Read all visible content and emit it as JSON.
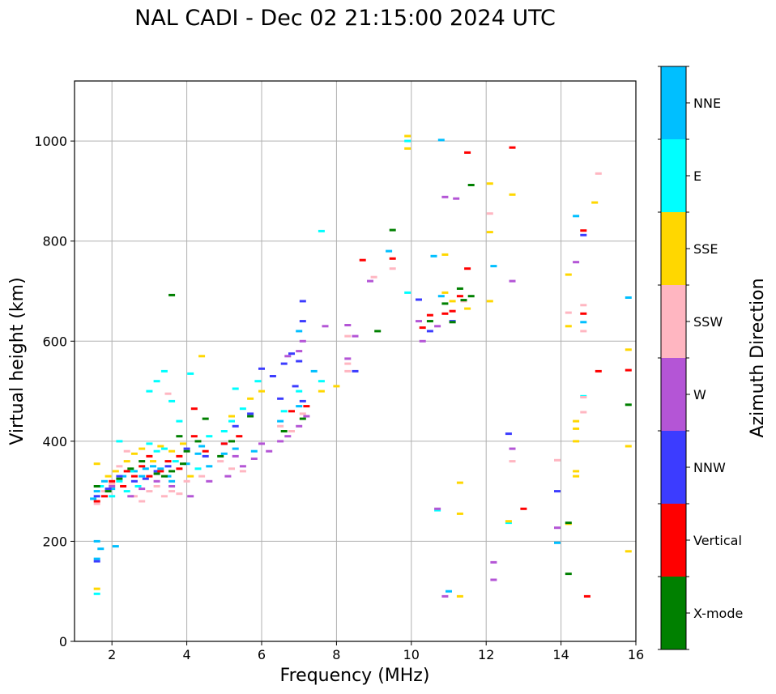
{
  "chart_data": {
    "type": "scatter",
    "title": "NAL CADI - Dec 02 21:15:00 2024 UTC",
    "xlabel": "Frequency (MHz)",
    "ylabel": "Virtual height (km)",
    "xlim": [
      1,
      16
    ],
    "ylim": [
      0,
      1120
    ],
    "xticks": [
      2,
      4,
      6,
      8,
      10,
      12,
      14,
      16
    ],
    "yticks": [
      0,
      200,
      400,
      600,
      800,
      1000
    ],
    "grid": true,
    "colorbar": {
      "label": "Azimuth Direction",
      "categories": [
        {
          "name": "X-mode",
          "color": "#008000"
        },
        {
          "name": "Vertical",
          "color": "#ff0000"
        },
        {
          "name": "NNW",
          "color": "#3c3cff"
        },
        {
          "name": "W",
          "color": "#b455d6"
        },
        {
          "name": "SSW",
          "color": "#ffb6c1"
        },
        {
          "name": "SSE",
          "color": "#ffd700"
        },
        {
          "name": "E",
          "color": "#00ffff"
        },
        {
          "name": "NNE",
          "color": "#00bfff"
        }
      ]
    },
    "series": [
      {
        "name": "NNE",
        "points": [
          [
            1.6,
            200
          ],
          [
            1.6,
            165
          ],
          [
            1.7,
            185
          ],
          [
            2.1,
            190
          ],
          [
            1.5,
            285
          ],
          [
            1.6,
            300
          ],
          [
            1.8,
            320
          ],
          [
            2.0,
            305
          ],
          [
            2.3,
            330
          ],
          [
            2.6,
            340
          ],
          [
            2.9,
            345
          ],
          [
            3.1,
            350
          ],
          [
            3.3,
            345
          ],
          [
            3.5,
            330
          ],
          [
            4.0,
            355
          ],
          [
            4.3,
            375
          ],
          [
            4.6,
            350
          ],
          [
            5.0,
            375
          ],
          [
            5.3,
            385
          ],
          [
            5.8,
            380
          ],
          [
            6.5,
            440
          ],
          [
            7.0,
            470
          ],
          [
            7.4,
            540
          ],
          [
            7.0,
            620
          ],
          [
            9.4,
            780
          ],
          [
            10.8,
            1002
          ],
          [
            10.6,
            770
          ],
          [
            10.8,
            690
          ],
          [
            12.2,
            750
          ],
          [
            14.4,
            850
          ],
          [
            14.6,
            638
          ],
          [
            15.8,
            687
          ],
          [
            13.9,
            197
          ],
          [
            11.0,
            100
          ],
          [
            2.8,
            330
          ],
          [
            3.6,
            320
          ],
          [
            4.4,
            390
          ]
        ]
      },
      {
        "name": "E",
        "points": [
          [
            1.6,
            95
          ],
          [
            1.7,
            310
          ],
          [
            2.0,
            290
          ],
          [
            2.2,
            320
          ],
          [
            2.4,
            300
          ],
          [
            2.5,
            340
          ],
          [
            2.7,
            310
          ],
          [
            3.0,
            395
          ],
          [
            3.2,
            380
          ],
          [
            3.4,
            385
          ],
          [
            3.7,
            360
          ],
          [
            4.3,
            345
          ],
          [
            4.6,
            410
          ],
          [
            5.0,
            420
          ],
          [
            5.2,
            440
          ],
          [
            5.5,
            465
          ],
          [
            5.9,
            520
          ],
          [
            6.6,
            460
          ],
          [
            7.0,
            500
          ],
          [
            7.6,
            520
          ],
          [
            3.0,
            500
          ],
          [
            3.2,
            520
          ],
          [
            3.4,
            540
          ],
          [
            3.6,
            480
          ],
          [
            4.1,
            535
          ],
          [
            5.3,
            505
          ],
          [
            7.6,
            820
          ],
          [
            9.9,
            697
          ],
          [
            10.7,
            262
          ],
          [
            12.6,
            237
          ],
          [
            14.6,
            490
          ],
          [
            9.9,
            1000
          ],
          [
            2.2,
            400
          ],
          [
            3.8,
            440
          ]
        ]
      },
      {
        "name": "SSE",
        "points": [
          [
            1.6,
            105
          ],
          [
            1.6,
            355
          ],
          [
            1.9,
            330
          ],
          [
            2.1,
            340
          ],
          [
            2.4,
            360
          ],
          [
            2.6,
            375
          ],
          [
            2.8,
            385
          ],
          [
            3.1,
            360
          ],
          [
            3.3,
            390
          ],
          [
            3.6,
            380
          ],
          [
            3.9,
            395
          ],
          [
            4.1,
            330
          ],
          [
            4.4,
            570
          ],
          [
            5.2,
            450
          ],
          [
            5.7,
            485
          ],
          [
            6.0,
            500
          ],
          [
            7.6,
            500
          ],
          [
            8.0,
            510
          ],
          [
            9.9,
            1010
          ],
          [
            9.9,
            985
          ],
          [
            10.9,
            773
          ],
          [
            10.9,
            697
          ],
          [
            11.3,
            90
          ],
          [
            11.3,
            255
          ],
          [
            11.3,
            317
          ],
          [
            12.1,
            915
          ],
          [
            12.1,
            818
          ],
          [
            12.1,
            680
          ],
          [
            12.7,
            893
          ],
          [
            12.6,
            240
          ],
          [
            14.2,
            733
          ],
          [
            14.2,
            630
          ],
          [
            14.4,
            440
          ],
          [
            14.4,
            425
          ],
          [
            14.4,
            400
          ],
          [
            14.4,
            340
          ],
          [
            14.4,
            330
          ],
          [
            14.2,
            235
          ],
          [
            14.9,
            877
          ],
          [
            15.8,
            583
          ],
          [
            15.8,
            390
          ],
          [
            15.8,
            180
          ],
          [
            11.1,
            680
          ],
          [
            11.5,
            665
          ]
        ]
      },
      {
        "name": "SSW",
        "points": [
          [
            1.6,
            275
          ],
          [
            1.8,
            300
          ],
          [
            2.0,
            315
          ],
          [
            2.2,
            350
          ],
          [
            2.4,
            380
          ],
          [
            2.6,
            290
          ],
          [
            2.8,
            280
          ],
          [
            3.0,
            300
          ],
          [
            3.2,
            310
          ],
          [
            3.4,
            290
          ],
          [
            3.6,
            300
          ],
          [
            3.8,
            295
          ],
          [
            4.0,
            320
          ],
          [
            4.4,
            330
          ],
          [
            4.9,
            360
          ],
          [
            5.2,
            345
          ],
          [
            5.5,
            340
          ],
          [
            6.5,
            430
          ],
          [
            6.8,
            420
          ],
          [
            7.1,
            455
          ],
          [
            8.3,
            540
          ],
          [
            8.3,
            555
          ],
          [
            8.3,
            610
          ],
          [
            9.0,
            728
          ],
          [
            9.5,
            745
          ],
          [
            12.1,
            855
          ],
          [
            12.7,
            360
          ],
          [
            13.9,
            362
          ],
          [
            14.2,
            657
          ],
          [
            14.6,
            672
          ],
          [
            14.6,
            488
          ],
          [
            14.6,
            458
          ],
          [
            14.6,
            620
          ],
          [
            15.0,
            935
          ],
          [
            11.4,
            680
          ],
          [
            3.5,
            495
          ]
        ]
      },
      {
        "name": "W",
        "points": [
          [
            2.0,
            310
          ],
          [
            2.5,
            290
          ],
          [
            2.8,
            305
          ],
          [
            3.2,
            320
          ],
          [
            3.6,
            310
          ],
          [
            4.1,
            290
          ],
          [
            4.6,
            320
          ],
          [
            5.1,
            330
          ],
          [
            5.3,
            370
          ],
          [
            5.5,
            350
          ],
          [
            5.8,
            365
          ],
          [
            6.0,
            395
          ],
          [
            6.2,
            380
          ],
          [
            6.5,
            400
          ],
          [
            6.7,
            410
          ],
          [
            7.0,
            430
          ],
          [
            7.2,
            450
          ],
          [
            7.7,
            630
          ],
          [
            6.7,
            570
          ],
          [
            7.0,
            580
          ],
          [
            7.1,
            600
          ],
          [
            8.3,
            632
          ],
          [
            8.3,
            565
          ],
          [
            8.9,
            720
          ],
          [
            10.2,
            640
          ],
          [
            10.3,
            600
          ],
          [
            10.7,
            630
          ],
          [
            10.9,
            888
          ],
          [
            11.2,
            885
          ],
          [
            12.2,
            158
          ],
          [
            12.2,
            123
          ],
          [
            12.7,
            720
          ],
          [
            12.7,
            385
          ],
          [
            13.9,
            227
          ],
          [
            14.4,
            758
          ],
          [
            10.7,
            265
          ],
          [
            10.9,
            90
          ],
          [
            8.5,
            610
          ]
        ]
      },
      {
        "name": "NNW",
        "points": [
          [
            1.6,
            160
          ],
          [
            1.6,
            290
          ],
          [
            1.9,
            305
          ],
          [
            2.2,
            330
          ],
          [
            2.6,
            320
          ],
          [
            2.9,
            325
          ],
          [
            3.2,
            340
          ],
          [
            3.5,
            350
          ],
          [
            4.0,
            385
          ],
          [
            4.5,
            370
          ],
          [
            5.0,
            395
          ],
          [
            5.3,
            430
          ],
          [
            5.7,
            455
          ],
          [
            6.0,
            545
          ],
          [
            6.3,
            530
          ],
          [
            6.6,
            555
          ],
          [
            6.8,
            575
          ],
          [
            7.0,
            560
          ],
          [
            7.1,
            480
          ],
          [
            7.1,
            640
          ],
          [
            7.1,
            680
          ],
          [
            8.5,
            540
          ],
          [
            10.2,
            683
          ],
          [
            10.5,
            620
          ],
          [
            11.1,
            640
          ],
          [
            12.6,
            415
          ],
          [
            13.9,
            300
          ],
          [
            14.6,
            812
          ],
          [
            6.9,
            510
          ],
          [
            6.5,
            485
          ]
        ]
      },
      {
        "name": "Vertical",
        "points": [
          [
            1.6,
            280
          ],
          [
            1.8,
            290
          ],
          [
            2.0,
            320
          ],
          [
            2.3,
            310
          ],
          [
            2.6,
            330
          ],
          [
            2.8,
            350
          ],
          [
            3.0,
            330
          ],
          [
            3.3,
            340
          ],
          [
            3.5,
            360
          ],
          [
            3.8,
            370
          ],
          [
            4.2,
            410
          ],
          [
            4.2,
            465
          ],
          [
            4.5,
            380
          ],
          [
            5.0,
            395
          ],
          [
            5.4,
            410
          ],
          [
            6.8,
            460
          ],
          [
            7.2,
            470
          ],
          [
            8.7,
            762
          ],
          [
            9.5,
            765
          ],
          [
            10.3,
            627
          ],
          [
            10.5,
            652
          ],
          [
            10.9,
            655
          ],
          [
            11.1,
            660
          ],
          [
            11.3,
            690
          ],
          [
            11.5,
            745
          ],
          [
            11.5,
            977
          ],
          [
            12.7,
            987
          ],
          [
            13.0,
            265
          ],
          [
            14.6,
            655
          ],
          [
            14.6,
            821
          ],
          [
            15.0,
            540
          ],
          [
            15.8,
            542
          ],
          [
            14.7,
            90
          ],
          [
            3.0,
            370
          ],
          [
            3.8,
            345
          ],
          [
            2.4,
            340
          ]
        ]
      },
      {
        "name": "X-mode",
        "points": [
          [
            1.6,
            310
          ],
          [
            1.9,
            300
          ],
          [
            2.2,
            325
          ],
          [
            2.5,
            345
          ],
          [
            2.8,
            360
          ],
          [
            3.2,
            335
          ],
          [
            3.4,
            330
          ],
          [
            3.6,
            340
          ],
          [
            3.8,
            410
          ],
          [
            4.0,
            380
          ],
          [
            4.3,
            400
          ],
          [
            4.5,
            445
          ],
          [
            4.9,
            370
          ],
          [
            5.2,
            400
          ],
          [
            5.7,
            450
          ],
          [
            6.6,
            420
          ],
          [
            7.1,
            445
          ],
          [
            3.6,
            692
          ],
          [
            9.5,
            822
          ],
          [
            9.1,
            620
          ],
          [
            10.5,
            640
          ],
          [
            10.9,
            675
          ],
          [
            11.1,
            638
          ],
          [
            11.3,
            705
          ],
          [
            11.4,
            682
          ],
          [
            11.6,
            690
          ],
          [
            11.6,
            912
          ],
          [
            14.2,
            135
          ],
          [
            14.2,
            237
          ],
          [
            15.8,
            473
          ],
          [
            3.9,
            355
          ]
        ]
      }
    ]
  }
}
